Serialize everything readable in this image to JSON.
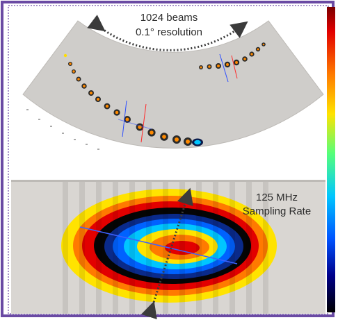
{
  "top_panel": {
    "beams_line": "1024 beams",
    "resolution_line": "0.1° resolution"
  },
  "bottom_panel": {
    "rate_line": "125 MHz",
    "sampling_line": "Sampling Rate"
  },
  "colors": {
    "border_purple": "#6a4aa3",
    "panel_bg": "#d9d6d2",
    "fan_bg": "#cfcdca",
    "dashed_arrow": "#3b3b3b"
  }
}
